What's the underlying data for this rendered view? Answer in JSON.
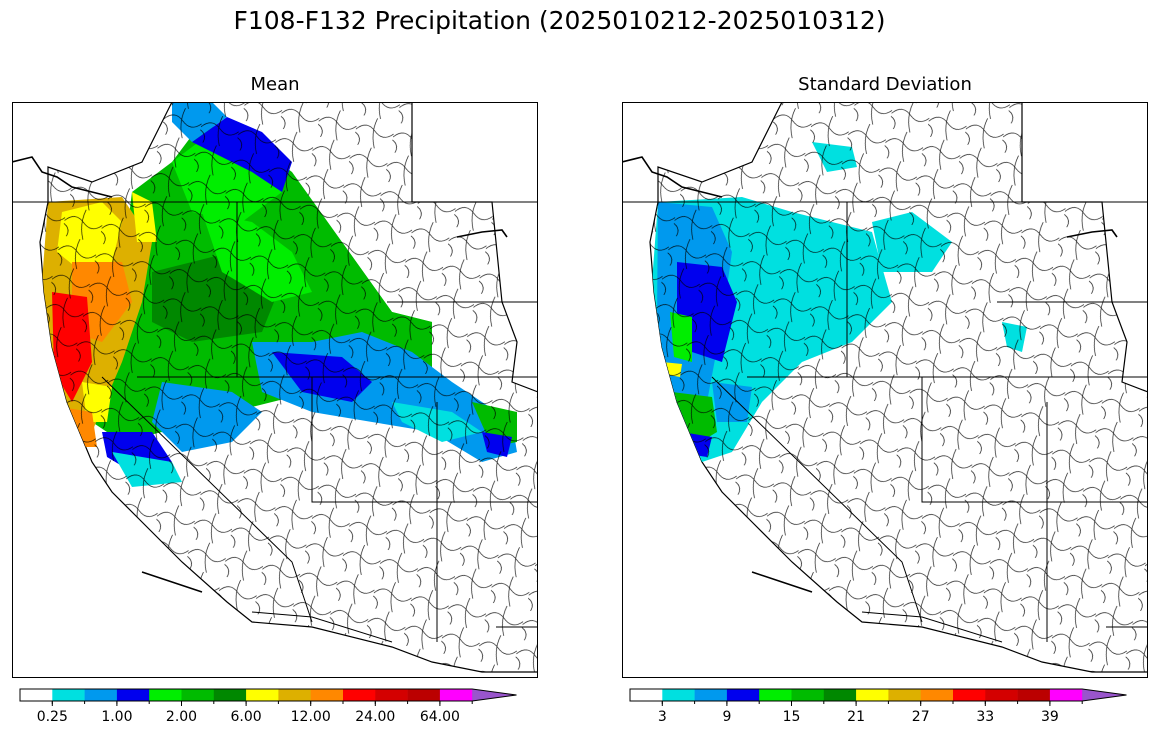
{
  "figure": {
    "title": "F108-F132 Precipitation (2025010212-2025010312)"
  },
  "panels": [
    {
      "title": "Mean",
      "colorbar": {
        "colors": [
          "#ffffff",
          "#00e0e0",
          "#0099ee",
          "#0000ee",
          "#00ee00",
          "#00bb00",
          "#008800",
          "#ffff00",
          "#ddb000",
          "#ff8800",
          "#ff0000",
          "#d40000",
          "#bb0000",
          "#ff00ff",
          "#9955cc"
        ],
        "tick_labels": [
          "0.25",
          "1.00",
          "2.00",
          "6.00",
          "12.00",
          "24.00",
          "64.00"
        ],
        "extend": "max"
      }
    },
    {
      "title": "Standard Deviation",
      "colorbar": {
        "colors": [
          "#ffffff",
          "#00e0e0",
          "#0099ee",
          "#0000ee",
          "#00ee00",
          "#00bb00",
          "#008800",
          "#ffff00",
          "#ddb000",
          "#ff8800",
          "#ff0000",
          "#d40000",
          "#bb0000",
          "#ff00ff",
          "#9955cc"
        ],
        "tick_labels": [
          "3",
          "9",
          "15",
          "21",
          "27",
          "33",
          "39"
        ],
        "extend": "max"
      }
    }
  ]
}
